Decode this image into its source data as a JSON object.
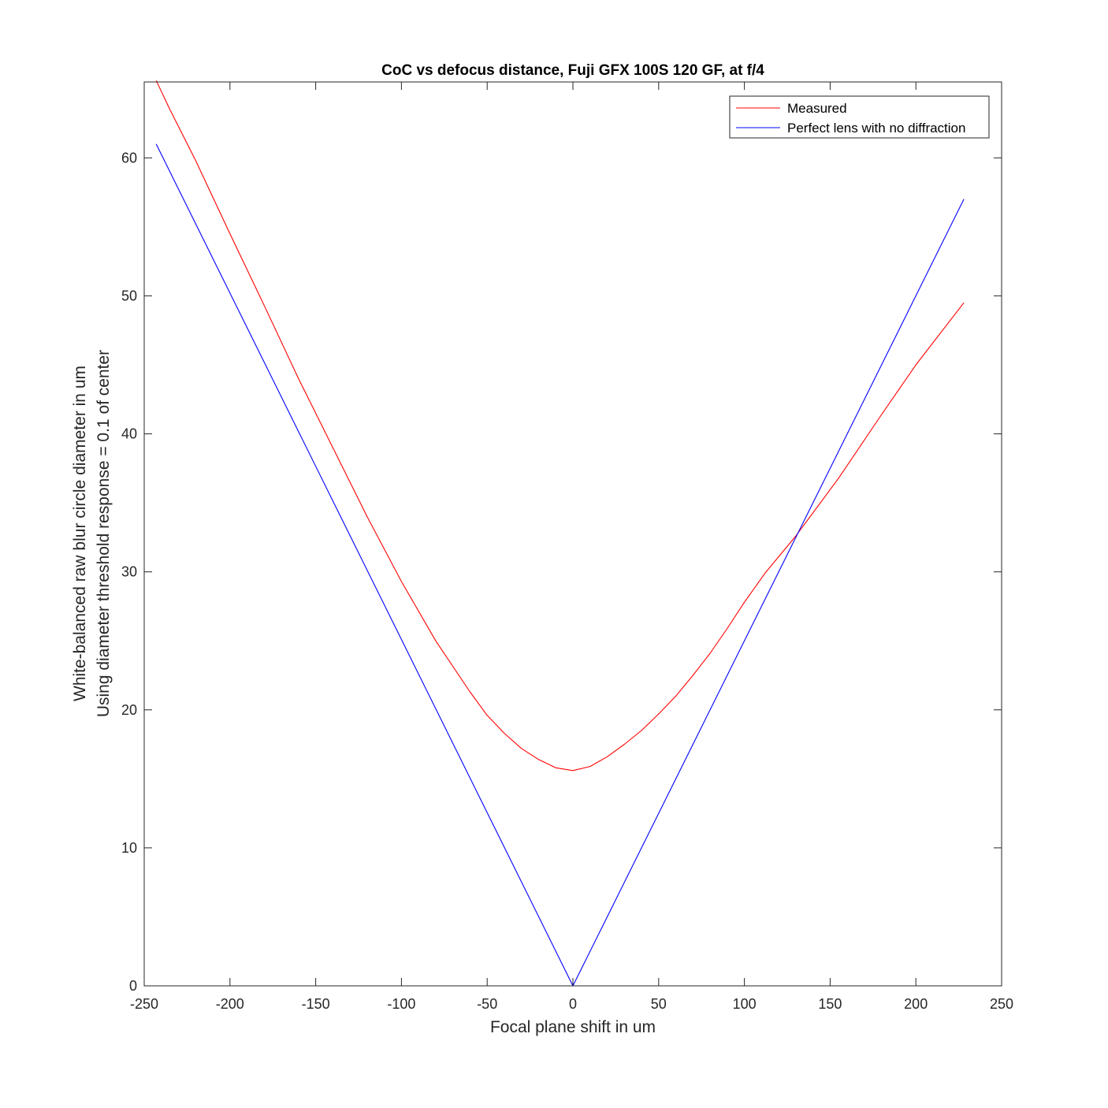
{
  "chart_data": {
    "type": "line",
    "title": "CoC vs defocus distance, Fuji GFX 100S 120 GF, at f/4",
    "xlabel": "Focal plane shift in um",
    "ylabel_lines": [
      "White-balanced raw blur circle diameter in um",
      "Using diameter threshold response = 0.1 of center"
    ],
    "xlim": [
      -250,
      250
    ],
    "ylim": [
      0,
      65.5
    ],
    "xticks": [
      -250,
      -200,
      -150,
      -100,
      -50,
      0,
      50,
      100,
      150,
      200,
      250
    ],
    "yticks": [
      0,
      10,
      20,
      30,
      40,
      50,
      60
    ],
    "grid": false,
    "legend_position": "top-right",
    "series": [
      {
        "name": "Measured",
        "color": "#ff0000",
        "x": [
          -243,
          -235,
          -220,
          -200,
          -180,
          -160,
          -140,
          -120,
          -100,
          -80,
          -60,
          -50,
          -40,
          -30,
          -20,
          -10,
          0,
          10,
          20,
          30,
          40,
          50,
          60,
          70,
          80,
          90,
          100,
          112,
          130,
          155,
          180,
          200,
          228
        ],
        "y": [
          65.6,
          63.5,
          59.8,
          54.5,
          49.3,
          44.0,
          39.0,
          34.0,
          29.3,
          25.0,
          21.3,
          19.6,
          18.3,
          17.2,
          16.4,
          15.8,
          15.6,
          15.9,
          16.6,
          17.5,
          18.5,
          19.7,
          21.0,
          22.5,
          24.1,
          25.9,
          27.8,
          29.9,
          32.6,
          36.8,
          41.4,
          45.0,
          49.5
        ]
      },
      {
        "name": "Perfect lens with no diffraction",
        "color": "#0000ff",
        "x": [
          -243,
          0,
          228
        ],
        "y": [
          61.0,
          0,
          57.0
        ]
      }
    ]
  }
}
